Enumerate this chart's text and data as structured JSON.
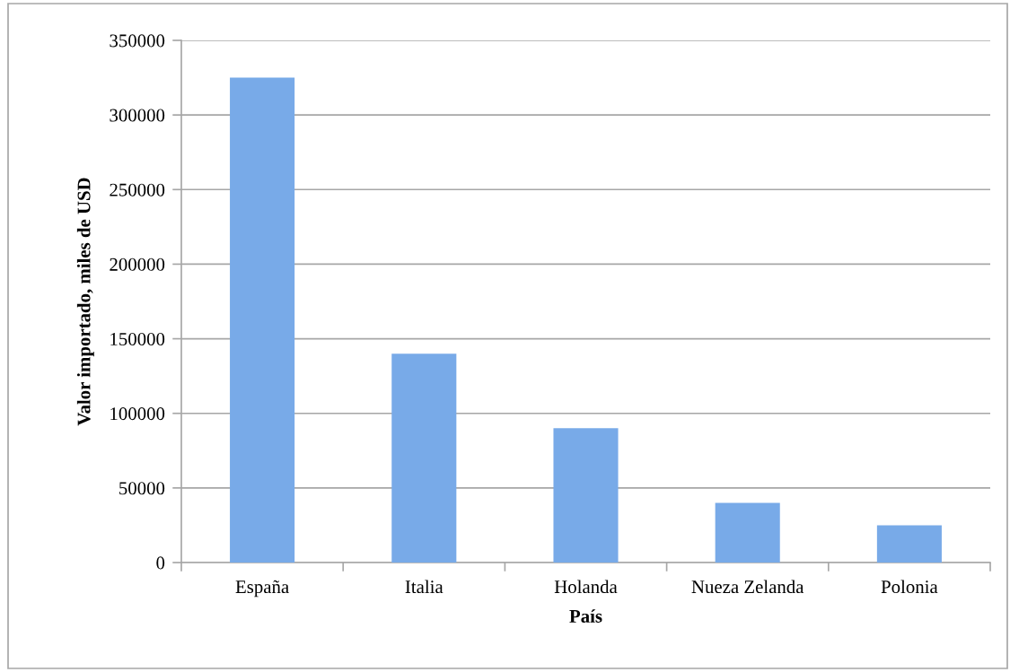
{
  "chart_data": {
    "type": "bar",
    "xlabel": "País",
    "ylabel": "Valor importado, miles de USD",
    "categories": [
      "España",
      "Italia",
      "Holanda",
      "Nueza Zelanda",
      "Polonia"
    ],
    "values": [
      325000,
      140000,
      90000,
      40000,
      25000
    ],
    "color": "#78aae8",
    "ylim": [
      0,
      350000
    ],
    "yticks": [
      0,
      50000,
      100000,
      150000,
      200000,
      250000,
      300000,
      350000
    ],
    "grid": "y"
  }
}
